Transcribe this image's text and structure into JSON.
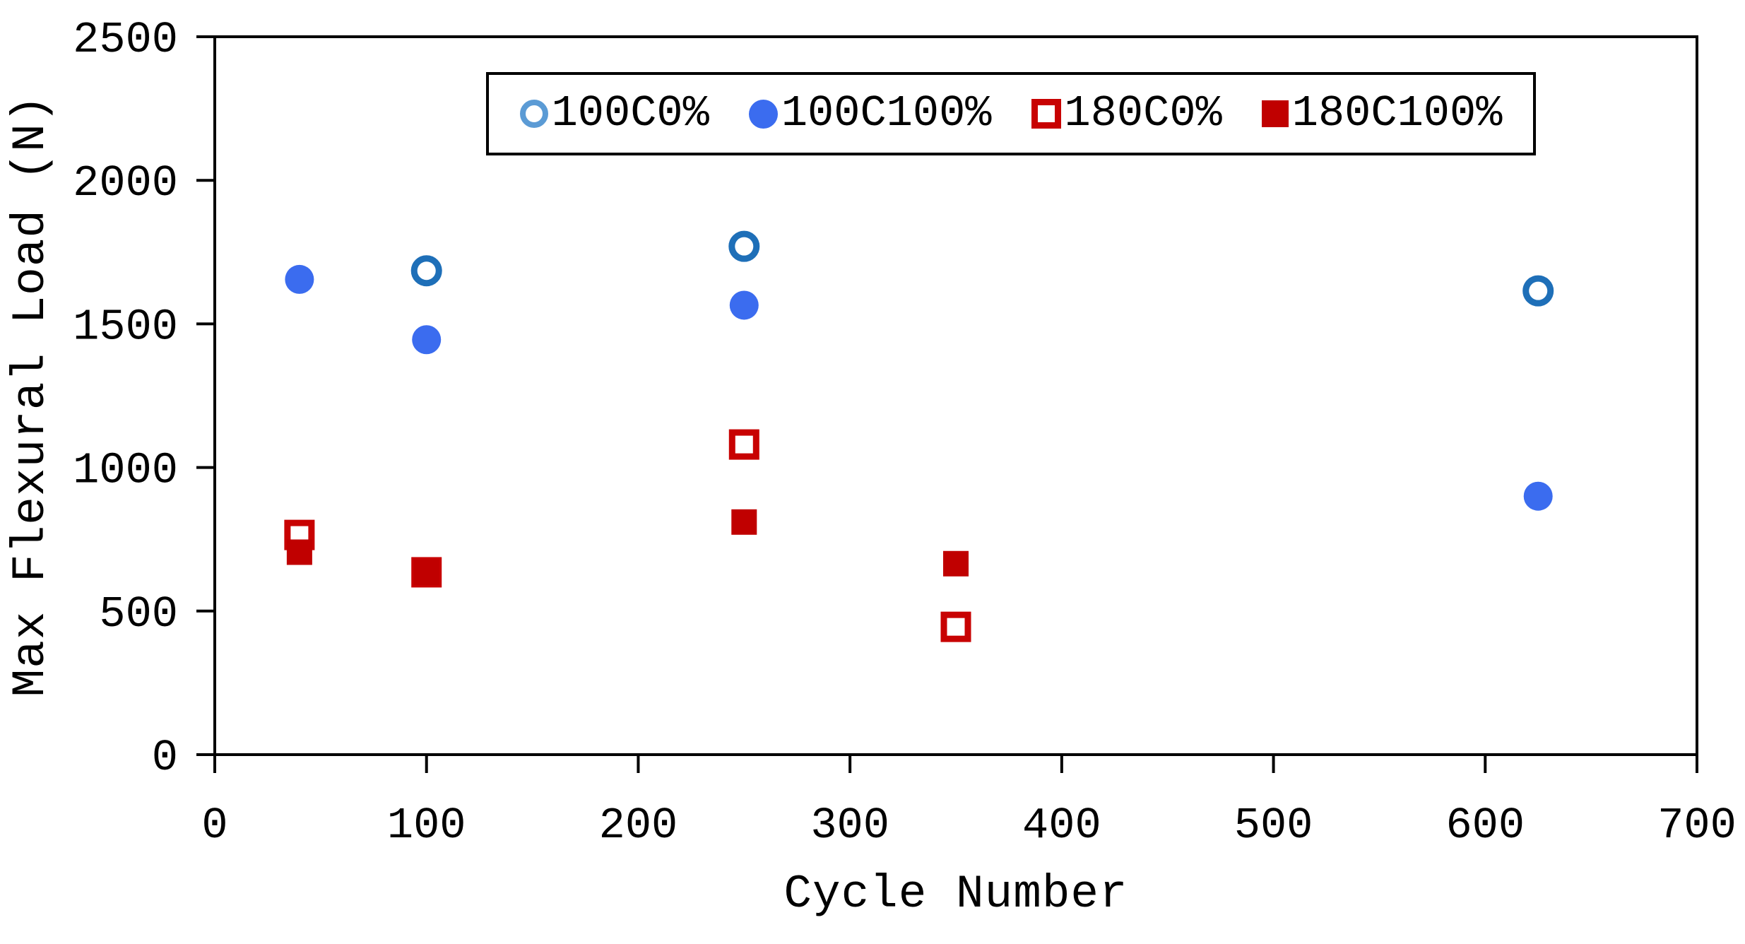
{
  "chart_data": {
    "type": "scatter",
    "title": "",
    "xlabel": "Cycle Number",
    "ylabel": "Max Flexural Load (N)",
    "xlim": [
      0,
      700
    ],
    "ylim": [
      0,
      2500
    ],
    "x_ticks": [
      0,
      100,
      200,
      300,
      400,
      500,
      600,
      700
    ],
    "y_ticks": [
      0,
      500,
      1000,
      1500,
      2000,
      2500
    ],
    "grid": false,
    "plot_border": true,
    "legend_position": "top-center-inside",
    "axis_color": "#000000",
    "series": [
      {
        "name": "100C0%",
        "marker": "circle-open",
        "color": "#1E6FB8",
        "legend_color": "#5B9BD5",
        "points": [
          [
            100,
            1685
          ],
          [
            250,
            1770
          ],
          [
            625,
            1615
          ]
        ]
      },
      {
        "name": "100C100%",
        "marker": "circle-filled",
        "color": "#3B6CEF",
        "points": [
          [
            40,
            1655
          ],
          [
            100,
            1445
          ],
          [
            250,
            1565
          ],
          [
            625,
            900
          ]
        ]
      },
      {
        "name": "180C0%",
        "marker": "square-open",
        "color": "#C80202",
        "points": [
          [
            40,
            765
          ],
          [
            100,
            635
          ],
          [
            250,
            1080
          ],
          [
            350,
            445
          ]
        ]
      },
      {
        "name": "180C100%",
        "marker": "square-filled",
        "color": "#C00000",
        "points": [
          [
            40,
            705
          ],
          [
            100,
            635
          ],
          [
            250,
            810
          ],
          [
            350,
            665
          ]
        ]
      }
    ]
  }
}
